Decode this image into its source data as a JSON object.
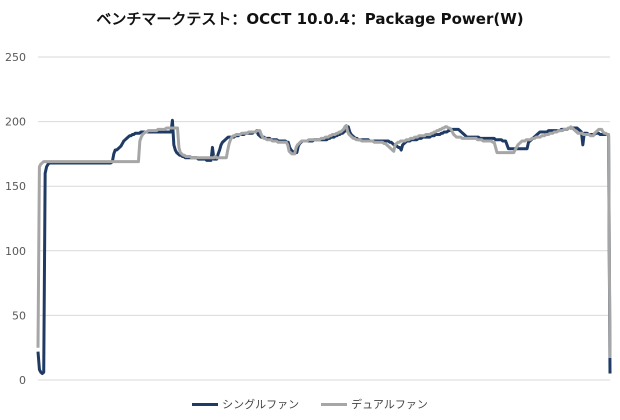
{
  "chart_data": {
    "type": "line",
    "title": "ベンチマークテスト：OCCT 10.0.4：Package Power(W)",
    "xlabel": "",
    "ylabel": "",
    "ylim": [
      0,
      250
    ],
    "yticks": [
      "0",
      "50",
      "100",
      "150",
      "200",
      "250"
    ],
    "grid": true,
    "legend_position": "bottom",
    "series": [
      {
        "name": "シングルファン",
        "color": "#1f3b64",
        "values": [
          22,
          8,
          6,
          5,
          6,
          160,
          165,
          167,
          168,
          168,
          168,
          168,
          168,
          168,
          168,
          168,
          168,
          168,
          168,
          168,
          168,
          168,
          168,
          168,
          168,
          168,
          168,
          168,
          168,
          168,
          168,
          168,
          168,
          168,
          168,
          168,
          168,
          168,
          168,
          168,
          168,
          168,
          168,
          168,
          168,
          168,
          168,
          168,
          168,
          168,
          168,
          168,
          169,
          175,
          178,
          178,
          179,
          180,
          181,
          183,
          185,
          186,
          187,
          188,
          189,
          189,
          190,
          190,
          191,
          191,
          191,
          191,
          192,
          192,
          192,
          192,
          192,
          192,
          192,
          192,
          192,
          192,
          192,
          192,
          192,
          192,
          192,
          192,
          192,
          192,
          192,
          192,
          192,
          192,
          201,
          182,
          178,
          176,
          175,
          174,
          174,
          173,
          173,
          172,
          172,
          172,
          172,
          172,
          172,
          172,
          172,
          172,
          171,
          171,
          171,
          171,
          171,
          171,
          170,
          170,
          170,
          170,
          180,
          171,
          171,
          171,
          175,
          178,
          182,
          184,
          185,
          186,
          187,
          188,
          188,
          188,
          188,
          188,
          189,
          189,
          189,
          190,
          190,
          190,
          190,
          191,
          191,
          191,
          191,
          191,
          191,
          192,
          192,
          193,
          190,
          189,
          188,
          188,
          188,
          187,
          187,
          187,
          187,
          186,
          186,
          186,
          186,
          186,
          185,
          185,
          185,
          185,
          185,
          185,
          184,
          184,
          180,
          178,
          177,
          176,
          176,
          176,
          181,
          183,
          184,
          185,
          185,
          185,
          185,
          185,
          185,
          185,
          185,
          186,
          186,
          186,
          186,
          186,
          186,
          186,
          186,
          186,
          186,
          187,
          187,
          188,
          188,
          188,
          189,
          189,
          190,
          190,
          191,
          191,
          192,
          193,
          194,
          196,
          192,
          190,
          189,
          188,
          187,
          187,
          186,
          186,
          186,
          186,
          186,
          186,
          186,
          186,
          185,
          185,
          185,
          185,
          185,
          185,
          185,
          185,
          185,
          185,
          185,
          185,
          185,
          185,
          184,
          184,
          183,
          182,
          181,
          181,
          180,
          180,
          178,
          182,
          183,
          184,
          185,
          185,
          185,
          186,
          186,
          186,
          186,
          186,
          187,
          187,
          187,
          188,
          188,
          188,
          188,
          188,
          188,
          189,
          189,
          189,
          190,
          190,
          190,
          190,
          191,
          191,
          192,
          192,
          192,
          193,
          193,
          194,
          194,
          194,
          194,
          194,
          194,
          193,
          192,
          191,
          190,
          189,
          188,
          188,
          188,
          188,
          188,
          188,
          188,
          188,
          188,
          187,
          187,
          187,
          187,
          187,
          187,
          187,
          187,
          187,
          187,
          187,
          186,
          186,
          186,
          186,
          186,
          185,
          185,
          185,
          182,
          179,
          179,
          179,
          179,
          179,
          179,
          179,
          179,
          179,
          179,
          179,
          179,
          179,
          179,
          184,
          185,
          186,
          187,
          188,
          189,
          190,
          191,
          192,
          192,
          192,
          192,
          192,
          192,
          193,
          193,
          193,
          193,
          193,
          193,
          193,
          193,
          193,
          194,
          194,
          194,
          194,
          194,
          195,
          195,
          195,
          195,
          195,
          195,
          195,
          194,
          193,
          192,
          182,
          191,
          191,
          191,
          190,
          190,
          190,
          190,
          190,
          191,
          191,
          191,
          190,
          190,
          190,
          190,
          190,
          190,
          189,
          5
        ]
      },
      {
        "name": "デュアルファン",
        "color": "#a6a6a6",
        "values": [
          25,
          165,
          167,
          168,
          169,
          169,
          169,
          169,
          169,
          169,
          169,
          169,
          169,
          169,
          169,
          169,
          169,
          169,
          169,
          169,
          169,
          169,
          169,
          169,
          169,
          169,
          169,
          169,
          169,
          169,
          169,
          169,
          169,
          169,
          169,
          169,
          169,
          169,
          169,
          169,
          169,
          169,
          169,
          169,
          169,
          169,
          169,
          169,
          169,
          169,
          169,
          169,
          169,
          169,
          169,
          169,
          169,
          169,
          169,
          169,
          169,
          169,
          169,
          169,
          169,
          169,
          169,
          169,
          169,
          169,
          169,
          169,
          169,
          185,
          188,
          190,
          191,
          192,
          192,
          193,
          193,
          193,
          193,
          193,
          193,
          193,
          194,
          194,
          194,
          194,
          194,
          194,
          195,
          195,
          195,
          195,
          195,
          195,
          195,
          195,
          195,
          180,
          176,
          175,
          174,
          174,
          173,
          173,
          173,
          173,
          172,
          172,
          172,
          172,
          172,
          172,
          172,
          172,
          172,
          172,
          172,
          172,
          172,
          172,
          172,
          172,
          172,
          173,
          172,
          172,
          172,
          172,
          172,
          172,
          172,
          172,
          178,
          183,
          186,
          188,
          189,
          189,
          190,
          190,
          190,
          190,
          191,
          191,
          191,
          191,
          191,
          192,
          192,
          192,
          192,
          192,
          192,
          193,
          193,
          193,
          190,
          188,
          187,
          187,
          186,
          186,
          186,
          186,
          185,
          185,
          185,
          185,
          184,
          184,
          184,
          184,
          184,
          184,
          184,
          182,
          177,
          176,
          175,
          175,
          175,
          180,
          182,
          183,
          184,
          185,
          185,
          185,
          185,
          185,
          186,
          186,
          186,
          186,
          186,
          186,
          186,
          186,
          186,
          187,
          187,
          187,
          188,
          188,
          188,
          189,
          189,
          190,
          190,
          190,
          191,
          191,
          192,
          192,
          193,
          194,
          196,
          197,
          192,
          190,
          189,
          188,
          187,
          187,
          186,
          186,
          186,
          186,
          185,
          185,
          185,
          185,
          185,
          185,
          185,
          185,
          185,
          184,
          184,
          184,
          184,
          184,
          184,
          184,
          183,
          183,
          182,
          181,
          180,
          179,
          178,
          177,
          182,
          183,
          184,
          184,
          185,
          185,
          185,
          185,
          186,
          186,
          186,
          187,
          187,
          187,
          188,
          188,
          188,
          189,
          189,
          189,
          189,
          189,
          190,
          190,
          190,
          190,
          191,
          191,
          192,
          192,
          193,
          193,
          194,
          194,
          195,
          195,
          196,
          196,
          195,
          195,
          194,
          192,
          190,
          189,
          188,
          188,
          188,
          188,
          187,
          187,
          187,
          187,
          187,
          187,
          187,
          187,
          187,
          187,
          187,
          186,
          186,
          186,
          186,
          185,
          185,
          185,
          185,
          185,
          185,
          185,
          184,
          184,
          180,
          176,
          176,
          176,
          176,
          176,
          176,
          176,
          176,
          176,
          176,
          176,
          176,
          176,
          178,
          180,
          182,
          183,
          184,
          185,
          185,
          185,
          186,
          186,
          186,
          186,
          187,
          187,
          187,
          188,
          188,
          188,
          188,
          189,
          189,
          189,
          190,
          190,
          190,
          191,
          191,
          191,
          192,
          192,
          192,
          193,
          193,
          193,
          193,
          194,
          194,
          194,
          195,
          195,
          196,
          195,
          194,
          193,
          192,
          191,
          191,
          191,
          191,
          190,
          190,
          190,
          190,
          190,
          189,
          189,
          189,
          191,
          192,
          193,
          194,
          194,
          194,
          192,
          191,
          191,
          190,
          190,
          17
        ]
      }
    ]
  }
}
